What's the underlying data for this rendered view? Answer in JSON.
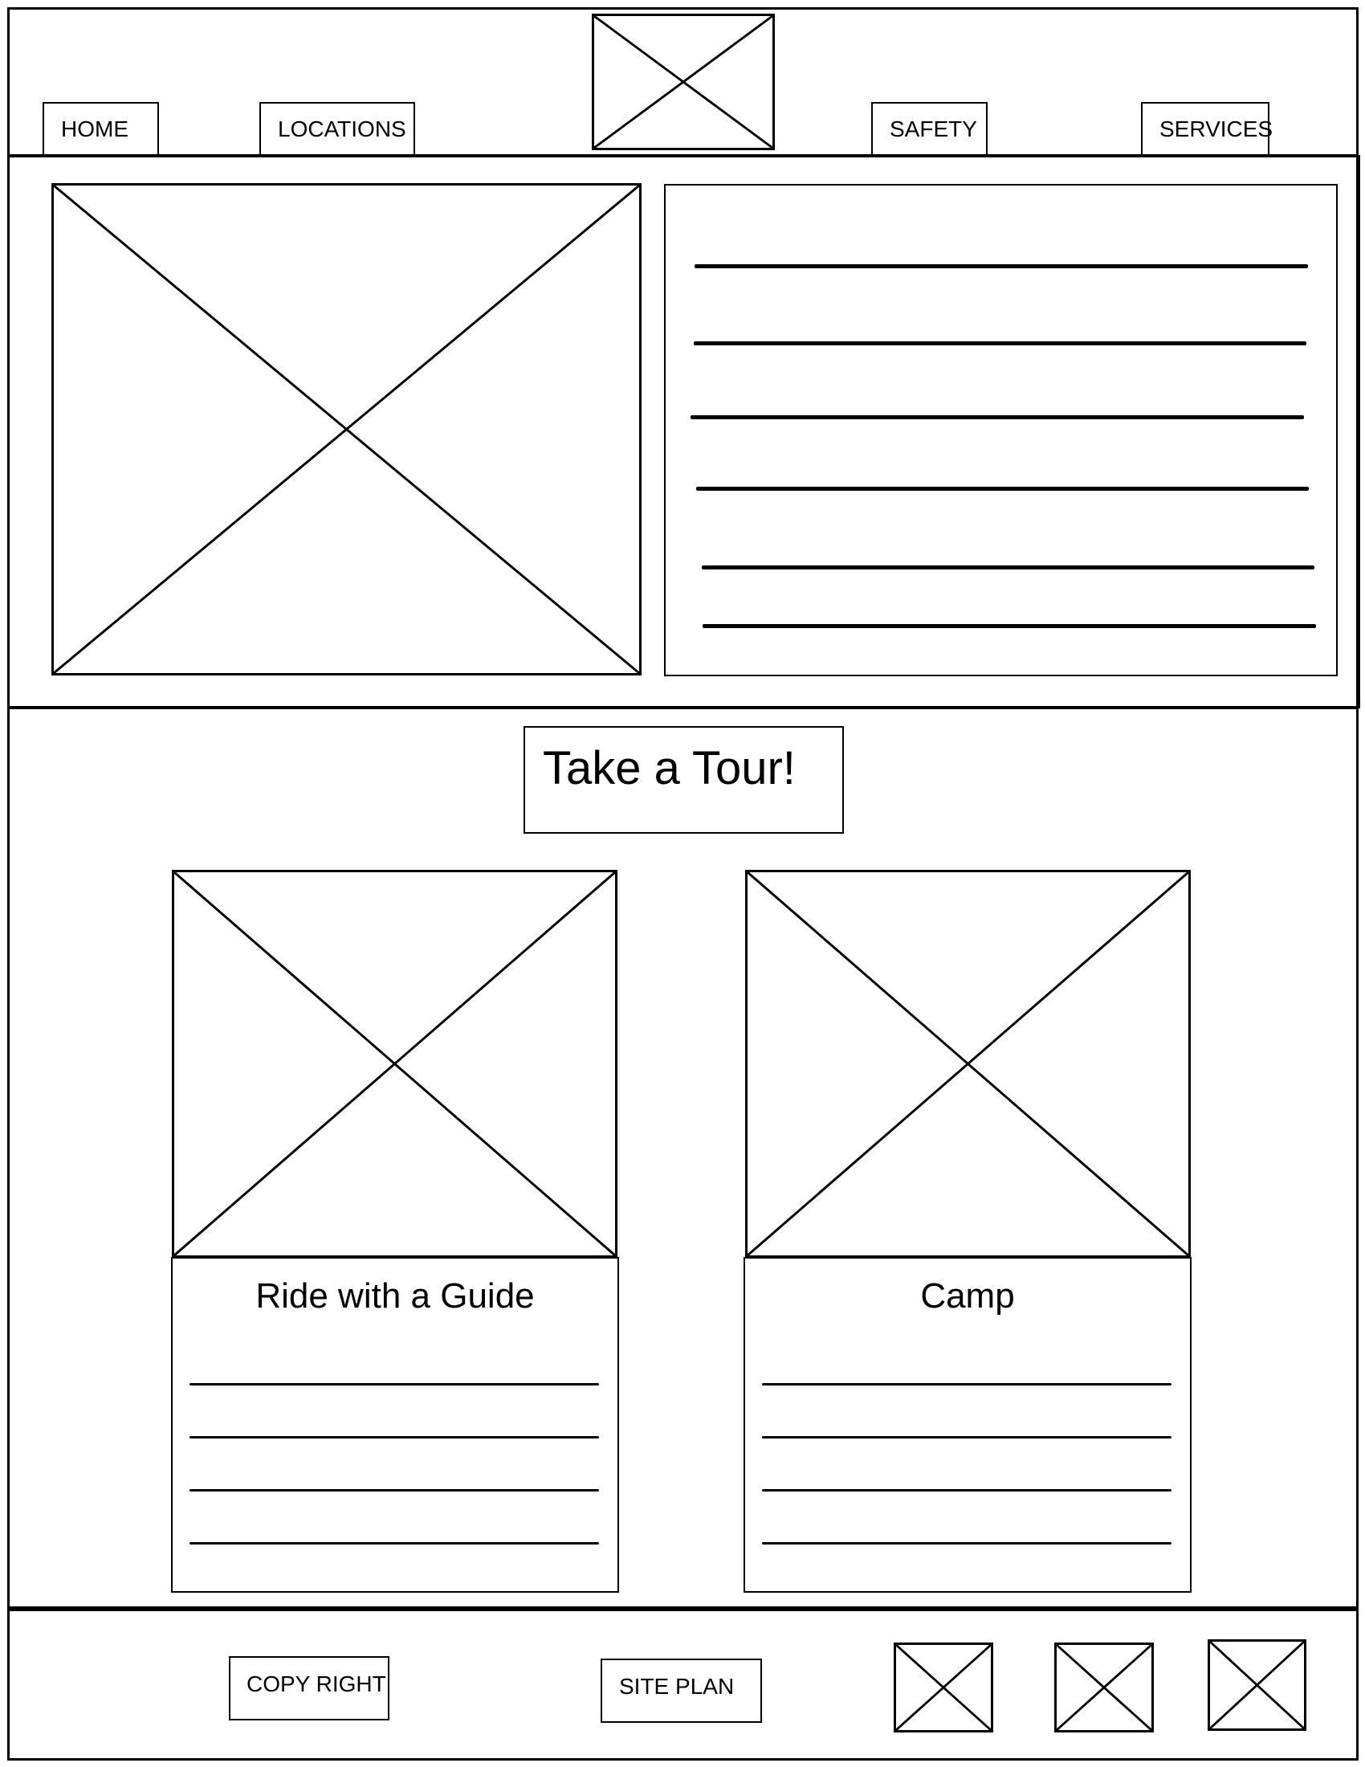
{
  "nav": {
    "home": "HOME",
    "locations": "LOCATIONS",
    "safety": "SAFETY",
    "services": "SERVICES"
  },
  "main": {
    "tour_heading": "Take a Tour!"
  },
  "cards": {
    "ride": "Ride with a Guide",
    "camp": "Camp"
  },
  "footer": {
    "copyright": "COPY RIGHT",
    "siteplan": "SITE PLAN"
  },
  "icons": {
    "image_placeholder": "image-placeholder-icon",
    "social_placeholder": "social-placeholder-icon"
  }
}
